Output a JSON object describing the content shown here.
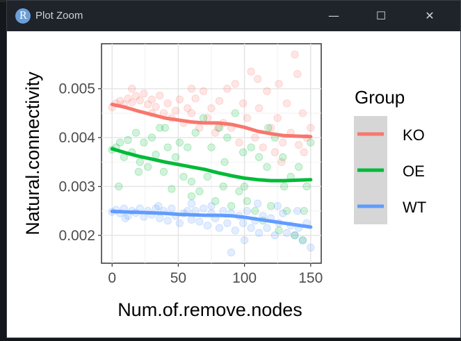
{
  "window": {
    "title": "Plot Zoom",
    "app_icon_letter": "R",
    "minimize_glyph": "—",
    "maximize_glyph": "☐",
    "close_glyph": "✕"
  },
  "chart_data": {
    "type": "scatter",
    "xlabel": "Num.of.remove.nodes",
    "ylabel": "Natural.connectivity",
    "xlim": [
      -8,
      158
    ],
    "ylim": [
      0.00143,
      0.00592
    ],
    "x_ticks": [
      0,
      50,
      100,
      150
    ],
    "y_ticks": [
      0.002,
      0.003,
      0.004,
      0.005
    ],
    "x_tick_labels": [
      "0",
      "50",
      "100",
      "150"
    ],
    "y_tick_labels": [
      "0.002",
      "0.003",
      "0.004",
      "0.005"
    ],
    "grid": true,
    "legend": {
      "title": "Group",
      "position": "right",
      "entries": [
        {
          "name": "KO",
          "color": "#F8766D"
        },
        {
          "name": "OE",
          "color": "#00BA38"
        },
        {
          "name": "WT",
          "color": "#619CFF"
        }
      ]
    },
    "series": [
      {
        "name": "KO",
        "color": "#F8766D",
        "smooth_x": [
          0,
          10,
          20,
          30,
          40,
          50,
          60,
          70,
          80,
          90,
          100,
          110,
          120,
          130,
          140,
          150
        ],
        "smooth_y": [
          0.00468,
          0.00462,
          0.00454,
          0.00447,
          0.0044,
          0.00436,
          0.00432,
          0.0043,
          0.0043,
          0.00427,
          0.00421,
          0.00413,
          0.00408,
          0.00404,
          0.00403,
          0.00402
        ]
      },
      {
        "name": "OE",
        "color": "#00BA38",
        "smooth_x": [
          0,
          10,
          20,
          30,
          40,
          50,
          60,
          70,
          80,
          90,
          100,
          110,
          120,
          130,
          140,
          150
        ],
        "smooth_y": [
          0.00377,
          0.00369,
          0.00362,
          0.00356,
          0.0035,
          0.00345,
          0.0034,
          0.00335,
          0.00328,
          0.00322,
          0.00317,
          0.00314,
          0.00312,
          0.00312,
          0.00313,
          0.00314
        ]
      },
      {
        "name": "WT",
        "color": "#619CFF",
        "smooth_x": [
          0,
          10,
          20,
          30,
          40,
          50,
          60,
          70,
          80,
          90,
          100,
          110,
          120,
          130,
          140,
          150
        ],
        "smooth_y": [
          0.00249,
          0.00248,
          0.00247,
          0.00246,
          0.00245,
          0.00243,
          0.00242,
          0.00241,
          0.00241,
          0.0024,
          0.00237,
          0.00233,
          0.00229,
          0.00225,
          0.00221,
          0.00217
        ]
      }
    ],
    "points_note_visible_only_as_marks": true,
    "points": {
      "KO": [
        [
          0,
          0.00462
        ],
        [
          3,
          0.0047
        ],
        [
          6,
          0.00475
        ],
        [
          9,
          0.00468
        ],
        [
          12,
          0.0048
        ],
        [
          15,
          0.00472
        ],
        [
          18,
          0.00485
        ],
        [
          21,
          0.00476
        ],
        [
          24,
          0.0049
        ],
        [
          27,
          0.00468
        ],
        [
          30,
          0.00478
        ],
        [
          33,
          0.00463
        ],
        [
          36,
          0.00486
        ],
        [
          39,
          0.0045
        ],
        [
          42,
          0.0047
        ],
        [
          45,
          0.0044
        ],
        [
          48,
          0.00455
        ],
        [
          51,
          0.00478
        ],
        [
          54,
          0.0043
        ],
        [
          57,
          0.0046
        ],
        [
          60,
          0.0045
        ],
        [
          63,
          0.0048
        ],
        [
          66,
          0.0042
        ],
        [
          69,
          0.00495
        ],
        [
          72,
          0.0044
        ],
        [
          75,
          0.0046
        ],
        [
          78,
          0.0041
        ],
        [
          81,
          0.00475
        ],
        [
          84,
          0.0043
        ],
        [
          87,
          0.005
        ],
        [
          90,
          0.0042
        ],
        [
          93,
          0.0051
        ],
        [
          96,
          0.0039
        ],
        [
          99,
          0.0047
        ],
        [
          102,
          0.0044
        ],
        [
          105,
          0.00535
        ],
        [
          108,
          0.004
        ],
        [
          111,
          0.0046
        ],
        [
          114,
          0.0038
        ],
        [
          117,
          0.00495
        ],
        [
          120,
          0.0042
        ],
        [
          123,
          0.0037
        ],
        [
          126,
          0.0051
        ],
        [
          129,
          0.0039
        ],
        [
          132,
          0.0047
        ],
        [
          135,
          0.0041
        ],
        [
          138,
          0.0057
        ],
        [
          141,
          0.00385
        ],
        [
          144,
          0.0045
        ],
        [
          147,
          0.004
        ],
        [
          150,
          0.0042
        ],
        [
          140,
          0.0053
        ],
        [
          128,
          0.0035
        ],
        [
          110,
          0.0052
        ],
        [
          80,
          0.0042
        ],
        [
          60,
          0.005
        ],
        [
          30,
          0.0045
        ],
        [
          15,
          0.005
        ],
        [
          145,
          0.0037
        ],
        [
          125,
          0.0044
        ]
      ],
      "OE": [
        [
          0,
          0.00375
        ],
        [
          3,
          0.0038
        ],
        [
          6,
          0.0039
        ],
        [
          9,
          0.0036
        ],
        [
          12,
          0.00395
        ],
        [
          15,
          0.0037
        ],
        [
          18,
          0.0041
        ],
        [
          21,
          0.0035
        ],
        [
          24,
          0.0039
        ],
        [
          27,
          0.0034
        ],
        [
          30,
          0.004
        ],
        [
          33,
          0.00365
        ],
        [
          36,
          0.0042
        ],
        [
          39,
          0.0033
        ],
        [
          42,
          0.0038
        ],
        [
          45,
          0.00295
        ],
        [
          48,
          0.0036
        ],
        [
          51,
          0.0039
        ],
        [
          54,
          0.0032
        ],
        [
          57,
          0.0038
        ],
        [
          60,
          0.0031
        ],
        [
          63,
          0.0041
        ],
        [
          66,
          0.0029
        ],
        [
          69,
          0.0044
        ],
        [
          72,
          0.0032
        ],
        [
          75,
          0.0038
        ],
        [
          78,
          0.0027
        ],
        [
          81,
          0.0042
        ],
        [
          84,
          0.003
        ],
        [
          87,
          0.004
        ],
        [
          90,
          0.0026
        ],
        [
          93,
          0.0045
        ],
        [
          96,
          0.0029
        ],
        [
          99,
          0.0037
        ],
        [
          102,
          0.0027
        ],
        [
          105,
          0.0038
        ],
        [
          108,
          0.0025
        ],
        [
          111,
          0.0036
        ],
        [
          114,
          0.0023
        ],
        [
          117,
          0.0034
        ],
        [
          120,
          0.0026
        ],
        [
          123,
          0.004
        ],
        [
          126,
          0.0021
        ],
        [
          129,
          0.0036
        ],
        [
          132,
          0.0025
        ],
        [
          135,
          0.0032
        ],
        [
          138,
          0.002
        ],
        [
          141,
          0.0034
        ],
        [
          144,
          0.0019
        ],
        [
          147,
          0.003
        ],
        [
          150,
          0.0039
        ],
        [
          5,
          0.003
        ],
        [
          20,
          0.0033
        ],
        [
          40,
          0.0042
        ],
        [
          60,
          0.0028
        ],
        [
          85,
          0.0035
        ],
        [
          100,
          0.003
        ],
        [
          118,
          0.0042
        ],
        [
          130,
          0.003
        ],
        [
          145,
          0.0025
        ]
      ],
      "WT": [
        [
          0,
          0.00248
        ],
        [
          3,
          0.00252
        ],
        [
          6,
          0.00245
        ],
        [
          9,
          0.00255
        ],
        [
          12,
          0.0024
        ],
        [
          15,
          0.0025
        ],
        [
          18,
          0.00246
        ],
        [
          21,
          0.00255
        ],
        [
          24,
          0.00238
        ],
        [
          27,
          0.0025
        ],
        [
          30,
          0.00242
        ],
        [
          33,
          0.00255
        ],
        [
          36,
          0.00235
        ],
        [
          39,
          0.0025
        ],
        [
          42,
          0.0023
        ],
        [
          45,
          0.00255
        ],
        [
          48,
          0.0024
        ],
        [
          51,
          0.00225
        ],
        [
          54,
          0.00245
        ],
        [
          57,
          0.0025
        ],
        [
          60,
          0.00232
        ],
        [
          63,
          0.0025
        ],
        [
          66,
          0.00228
        ],
        [
          69,
          0.00255
        ],
        [
          72,
          0.0022
        ],
        [
          75,
          0.00245
        ],
        [
          78,
          0.00235
        ],
        [
          81,
          0.00215
        ],
        [
          84,
          0.0025
        ],
        [
          87,
          0.00225
        ],
        [
          90,
          0.00245
        ],
        [
          93,
          0.0021
        ],
        [
          96,
          0.0024
        ],
        [
          99,
          0.00225
        ],
        [
          102,
          0.0025
        ],
        [
          105,
          0.00215
        ],
        [
          108,
          0.0023
        ],
        [
          111,
          0.00205
        ],
        [
          114,
          0.0024
        ],
        [
          117,
          0.00215
        ],
        [
          120,
          0.00235
        ],
        [
          123,
          0.002
        ],
        [
          126,
          0.00225
        ],
        [
          129,
          0.00245
        ],
        [
          132,
          0.00205
        ],
        [
          135,
          0.0022
        ],
        [
          138,
          0.002
        ],
        [
          141,
          0.00215
        ],
        [
          144,
          0.0019
        ],
        [
          147,
          0.00225
        ],
        [
          150,
          0.00175
        ],
        [
          90,
          0.00165
        ],
        [
          75,
          0.0026
        ],
        [
          110,
          0.00265
        ],
        [
          60,
          0.00265
        ],
        [
          100,
          0.0019
        ],
        [
          125,
          0.0026
        ],
        [
          140,
          0.0025
        ],
        [
          35,
          0.0026
        ],
        [
          10,
          0.00235
        ]
      ]
    }
  }
}
